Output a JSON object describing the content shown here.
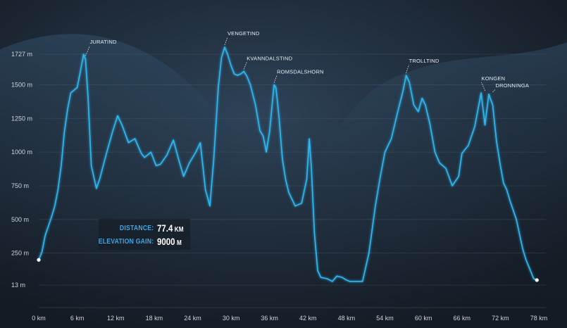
{
  "chart_data": {
    "type": "line",
    "title": "",
    "xlabel": "",
    "ylabel": "",
    "x_unit": "km",
    "y_unit": "m",
    "xlim": [
      0,
      78
    ],
    "ylim": [
      13,
      1727
    ],
    "x_ticks": [
      "0 km",
      "6 km",
      "12 km",
      "18 km",
      "24 km",
      "30 km",
      "36 km",
      "42 km",
      "48 km",
      "54 km",
      "60 km",
      "66 km",
      "72 km",
      "78 km"
    ],
    "y_ticks": [
      "13 m",
      "250 m",
      "500 m",
      "750 m",
      "1000 m",
      "1250 m",
      "1500 m",
      "1727 m"
    ],
    "grid": "horizontal",
    "line_color": "#2fb8f2",
    "series": [
      {
        "x": [
          0,
          0.5,
          1.0,
          1.5,
          2.0,
          2.5,
          3.0,
          3.5,
          4.0,
          4.5,
          5.0,
          5.5,
          6.0,
          6.5,
          7.0,
          7.3,
          7.7,
          8.2,
          9.0,
          9.5,
          10.5,
          11.5,
          12.3,
          13.0,
          14.0,
          15.0,
          16.0,
          16.5,
          17.5,
          18.3,
          19.0,
          20.0,
          21.0,
          21.8,
          22.6,
          23.5,
          24.5,
          25.2,
          26.0,
          26.7,
          27.3,
          28.0,
          28.5,
          29.0,
          29.5,
          30.0,
          30.5,
          31.0,
          31.5,
          32.0,
          32.5,
          33.0,
          33.8,
          34.5,
          35.0,
          35.5,
          36.0,
          36.7,
          37.0,
          37.5,
          38.0,
          38.5,
          39.0,
          40.0,
          41.0,
          41.8,
          42.2,
          42.5,
          43.0,
          43.5,
          44.0,
          45.0,
          45.8,
          46.5,
          47.3,
          48.0,
          48.5,
          49.5,
          50.5,
          51.5,
          52.5,
          53.2,
          54.0,
          55.0,
          56.0,
          56.8,
          57.3,
          57.8,
          58.5,
          59.2,
          59.8,
          60.3,
          61.0,
          61.8,
          62.5,
          63.5,
          64.5,
          65.5,
          66.0,
          67.0,
          68.0,
          69.0,
          69.6,
          70.2,
          70.8,
          71.4,
          72.0,
          72.5,
          73.0,
          73.5,
          74.5,
          75.5,
          76.0,
          76.6,
          77.2,
          77.7
        ],
        "y": [
          200,
          260,
          380,
          450,
          520,
          600,
          720,
          900,
          1150,
          1320,
          1440,
          1460,
          1480,
          1600,
          1727,
          1690,
          1400,
          900,
          730,
          800,
          980,
          1150,
          1270,
          1200,
          1070,
          1100,
          990,
          960,
          1000,
          900,
          910,
          980,
          1090,
          950,
          820,
          920,
          1000,
          1070,
          720,
          600,
          950,
          1480,
          1700,
          1780,
          1720,
          1640,
          1580,
          1570,
          1580,
          1600,
          1560,
          1500,
          1350,
          1160,
          1120,
          1000,
          1150,
          1500,
          1480,
          1250,
          950,
          800,
          700,
          600,
          620,
          800,
          1100,
          900,
          400,
          120,
          70,
          60,
          40,
          80,
          70,
          50,
          40,
          40,
          40,
          250,
          600,
          800,
          1000,
          1100,
          1300,
          1450,
          1570,
          1520,
          1350,
          1300,
          1400,
          1350,
          1210,
          1000,
          920,
          880,
          750,
          820,
          990,
          1050,
          1190,
          1440,
          1200,
          1430,
          1350,
          1080,
          900,
          770,
          720,
          640,
          500,
          280,
          200,
          130,
          60,
          50
        ]
      }
    ],
    "annotations": [
      {
        "label": "JURATIND",
        "x": 7.3,
        "y": 1700
      },
      {
        "label": "VENGETIND",
        "x": 29.0,
        "y": 1780
      },
      {
        "label": "KVANNDALSTIND",
        "x": 32.0,
        "y": 1600
      },
      {
        "label": "ROMSDALSHORN",
        "x": 36.7,
        "y": 1500
      },
      {
        "label": "TROLLTIND",
        "x": 57.3,
        "y": 1570
      },
      {
        "label": "KONGEN",
        "x": 69.6,
        "y": 1440
      },
      {
        "label": "DRONNINGA",
        "x": 70.8,
        "y": 1430
      }
    ]
  },
  "stats": {
    "distance_label": "DISTANCE:",
    "distance_value": "77.4",
    "distance_unit": "KM",
    "gain_label": "ELEVATION GAIN:",
    "gain_value": "9000",
    "gain_unit": "M"
  }
}
